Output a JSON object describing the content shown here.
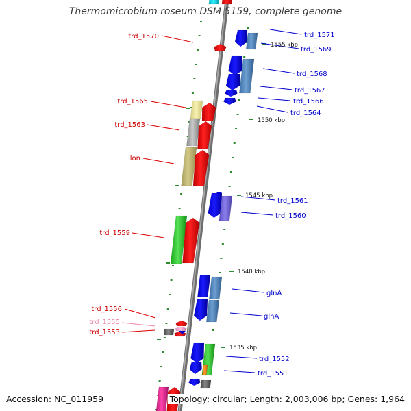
{
  "title": "Thermomicrobium roseum DSM 5159, complete genome",
  "footer": {
    "accession": "Accession: NC_011959",
    "stats": "Topology: circular; Length: 2,003,006 bp; Genes: 1,964"
  },
  "colors": {
    "backbone": "#8a8a8a",
    "tick": "#2e8b2e",
    "label_red": "#cc0000",
    "label_blue": "#0000cc",
    "label_pink": "#ee88aa",
    "leader_red": "#dd0000",
    "leader_blue": "#0000cc"
  },
  "scale_labels": [
    "1555 kbp",
    "1550 kbp",
    "1545 kbp",
    "1540 kbp",
    "1535 kbp"
  ],
  "gene_labels": {
    "trd_1571": "trd_1571",
    "trd_1569": "trd_1569",
    "trd_1568": "trd_1568",
    "trd_1567": "trd_1567",
    "trd_1566": "trd_1566",
    "trd_1564": "trd_1564",
    "trd_1561": "trd_1561",
    "trd_1560": "trd_1560",
    "glnA_1": "glnA",
    "glnA_2": "glnA",
    "trd_1552": "trd_1552",
    "trd_1551": "trd_1551",
    "trd_1570": "trd_1570",
    "trd_1565": "trd_1565",
    "trd_1563": "trd_1563",
    "lon": "lon",
    "trd_1559": "trd_1559",
    "trd_1556": "trd_1556",
    "trd_1555": "trd_1555",
    "trd_1553": "trd_1553"
  }
}
